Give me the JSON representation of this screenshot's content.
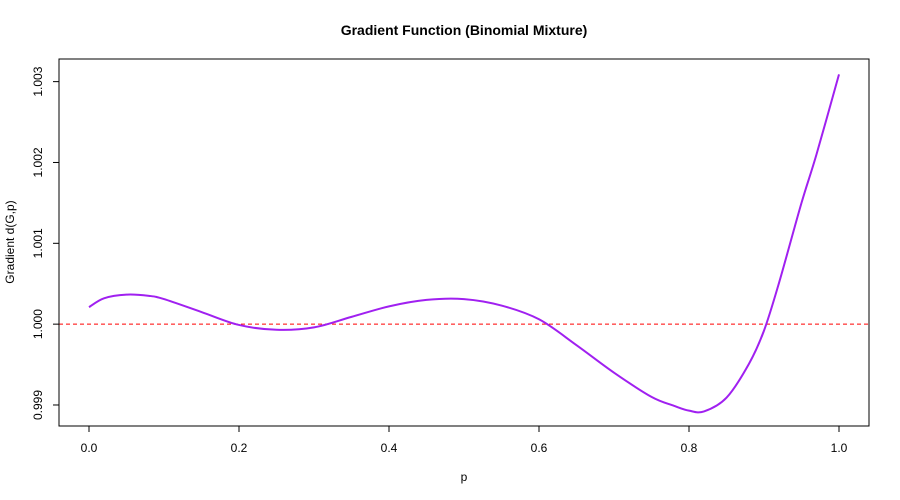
{
  "chart_data": {
    "type": "line",
    "title": "Gradient Function (Binomial Mixture)",
    "xlabel": "p",
    "ylabel": "Gradient d(G,p)",
    "xlim": [
      -0.04,
      1.04
    ],
    "ylim": [
      0.99874,
      1.00328
    ],
    "x_ticks": [
      0.0,
      0.2,
      0.4,
      0.6,
      0.8,
      1.0
    ],
    "x_tick_labels": [
      "0.0",
      "0.2",
      "0.4",
      "0.6",
      "0.8",
      "1.0"
    ],
    "y_ticks": [
      0.999,
      1.0,
      1.001,
      1.002,
      1.003
    ],
    "y_tick_labels": [
      "0.999",
      "1.000",
      "1.001",
      "1.002",
      "1.003"
    ],
    "grid": false,
    "series": [
      {
        "color": "#a020f0",
        "x": [
          0.0,
          0.02,
          0.05,
          0.08,
          0.1,
          0.15,
          0.2,
          0.25,
          0.3,
          0.35,
          0.4,
          0.45,
          0.5,
          0.55,
          0.6,
          0.65,
          0.7,
          0.75,
          0.78,
          0.8,
          0.82,
          0.85,
          0.88,
          0.9,
          0.92,
          0.95,
          0.97,
          1.0
        ],
        "y": [
          1.00021,
          1.00032,
          1.000365,
          1.00035,
          1.00031,
          1.00015,
          0.99999,
          0.99993,
          0.99996,
          1.00009,
          1.00022,
          1.0003,
          1.00031,
          1.00023,
          1.00006,
          0.99974,
          0.9994,
          0.9991,
          0.99899,
          0.99893,
          0.99892,
          0.99909,
          0.99951,
          0.99992,
          1.00051,
          1.0015,
          1.0021,
          1.00309
        ]
      }
    ],
    "reference_lines": [
      {
        "axis": "y",
        "value": 1.0,
        "color": "#ff0000",
        "style": "dashed"
      }
    ]
  }
}
